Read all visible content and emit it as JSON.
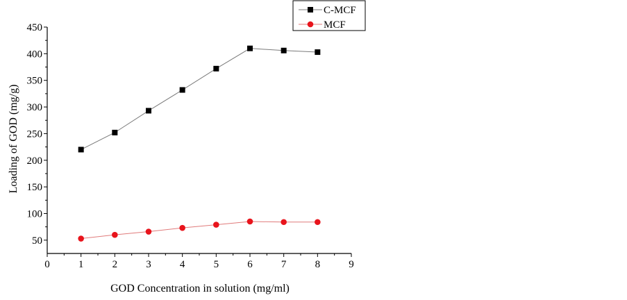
{
  "chart_data": {
    "type": "line",
    "title": "",
    "xlabel": "GOD Concentration in solution (mg/ml)",
    "ylabel": "Loading of GOD (mg/g)",
    "xlim": [
      0,
      9
    ],
    "ylim": [
      25,
      450
    ],
    "xticks": [
      0,
      1,
      2,
      3,
      4,
      5,
      6,
      7,
      8,
      9
    ],
    "yticks": [
      50,
      100,
      150,
      200,
      250,
      300,
      350,
      400,
      450
    ],
    "grid": false,
    "legend_position": "top-right",
    "series": [
      {
        "name": "C-MCF",
        "marker": "square",
        "color": "#000000",
        "line_color": "#7a7a7a",
        "x": [
          1,
          2,
          3,
          4,
          5,
          6,
          7,
          8
        ],
        "values": [
          220,
          252,
          293,
          332,
          372,
          410,
          406,
          403
        ]
      },
      {
        "name": "MCF",
        "marker": "circle",
        "color": "#e8141c",
        "line_color": "#e07a7a",
        "x": [
          1,
          2,
          3,
          4,
          5,
          6,
          7,
          8
        ],
        "values": [
          53,
          60,
          66,
          73,
          79,
          85,
          84,
          84
        ]
      }
    ]
  }
}
